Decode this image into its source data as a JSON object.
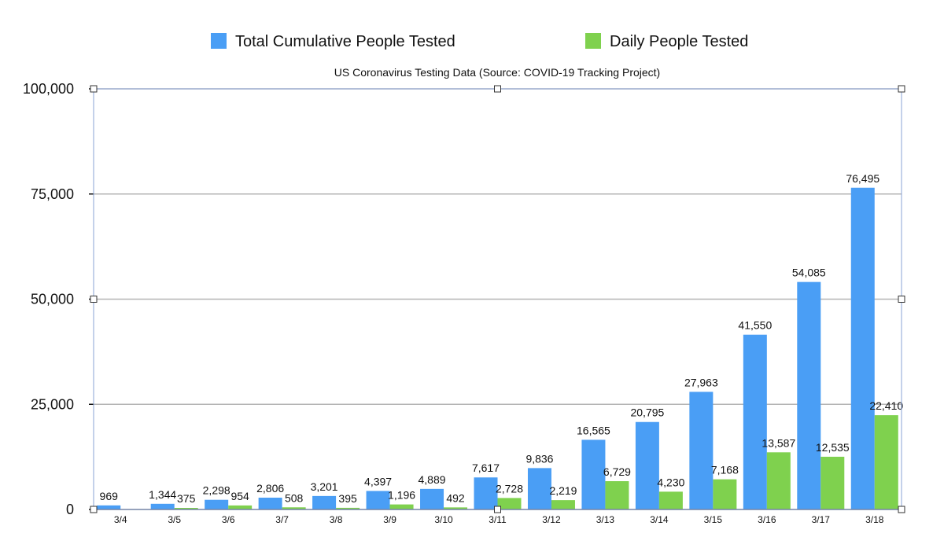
{
  "chart_data": {
    "type": "bar",
    "title": "US Coronavirus Testing Data (Source: COVID-19 Tracking Project)",
    "categories": [
      "3/4",
      "3/5",
      "3/6",
      "3/7",
      "3/8",
      "3/9",
      "3/10",
      "3/11",
      "3/12",
      "3/13",
      "3/14",
      "3/15",
      "3/16",
      "3/17",
      "3/18"
    ],
    "series": [
      {
        "name": "Total Cumulative People Tested",
        "color": "#4a9ef5",
        "values": [
          969,
          1344,
          2298,
          2806,
          3201,
          4397,
          4889,
          7617,
          9836,
          16565,
          20795,
          27963,
          41550,
          54085,
          76495
        ],
        "labels": [
          "969",
          "1,344",
          "2,298",
          "2,806",
          "3,201",
          "4,397",
          "4,889",
          "7,617",
          "9,836",
          "16,565",
          "20,795",
          "27,963",
          "41,550",
          "54,085",
          "76,495"
        ]
      },
      {
        "name": "Daily People Tested",
        "color": "#7fd14e",
        "values": [
          0,
          375,
          954,
          508,
          395,
          1196,
          492,
          2728,
          2219,
          6729,
          4230,
          7168,
          13587,
          12535,
          22410
        ],
        "labels": [
          "",
          "375",
          "954",
          "508",
          "395",
          "1,196",
          "492",
          "2,728",
          "2,219",
          "6,729",
          "4,230",
          "7,168",
          "13,587",
          "12,535",
          "22,410"
        ]
      }
    ],
    "ylim": [
      0,
      100000
    ],
    "yticks": [
      0,
      25000,
      50000,
      75000,
      100000
    ],
    "ytick_labels": [
      "0",
      "25,000",
      "50,000",
      "75,000",
      "100,000"
    ],
    "grid": true,
    "legend_position": "top"
  }
}
